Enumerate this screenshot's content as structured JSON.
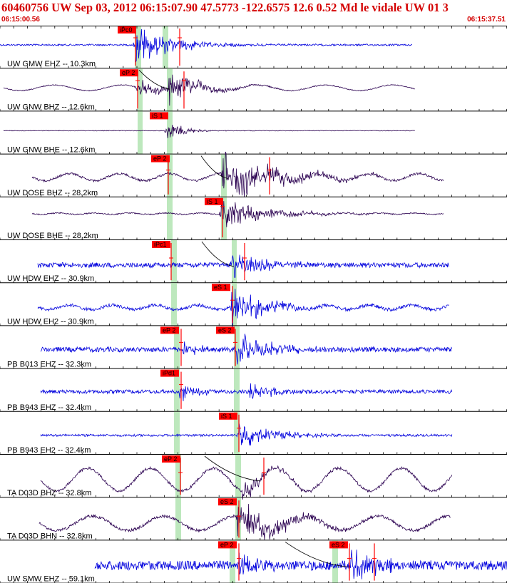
{
  "header": {
    "title": "60460756 UW Sep 03, 2012 06:15:07.90    47.5773 -122.6575 12.6 0.52 Md le vidale UW 01    3",
    "time_start": "06:15:00.56",
    "time_end": "06:15:37.51"
  },
  "colors": {
    "title": "#d40000",
    "blue_trace": "#0000dd",
    "purple_trace": "#2a0050",
    "pick_box": "#ff0000",
    "pick_line": "#ff0000",
    "window_shade": "#bde8bd",
    "separator": "#000000"
  },
  "traces": [
    {
      "label": "UW GMW EHZ -- 10.3km",
      "color": "blue",
      "picks": [
        {
          "text": "iPc0"
        }
      ]
    },
    {
      "label": "UW GNW BHZ -- 12.6km",
      "color": "purple",
      "picks": [
        {
          "text": "eP 2"
        }
      ]
    },
    {
      "label": "UW GNW BHE -- 12.6km",
      "color": "purple",
      "picks": [
        {
          "text": "iS 1"
        }
      ]
    },
    {
      "label": "UW DOSE BHZ -- 28.2km",
      "color": "purple",
      "picks": [
        {
          "text": "eP 2"
        }
      ]
    },
    {
      "label": "UW DOSE BHE -- 28.2km",
      "color": "purple",
      "picks": [
        {
          "text": "iS 1"
        }
      ]
    },
    {
      "label": "UW HDW EHZ -- 30.9km",
      "color": "blue",
      "picks": [
        {
          "text": "iPc1"
        }
      ]
    },
    {
      "label": "UW HDW EH2 -- 30.9km",
      "color": "blue",
      "picks": [
        {
          "text": "eS 1"
        }
      ]
    },
    {
      "label": "PB B013 EHZ -- 32.3km",
      "color": "blue",
      "picks": [
        {
          "text": "eP 2"
        },
        {
          "text": "eS 2"
        }
      ]
    },
    {
      "label": "PB B943 EHZ -- 32.4km",
      "color": "blue",
      "picks": [
        {
          "text": "iPd1"
        }
      ]
    },
    {
      "label": "PB B943 EH2 -- 32.4km",
      "color": "blue",
      "picks": [
        {
          "text": "iS 1"
        }
      ]
    },
    {
      "label": "TA D03D BHZ -- 32.8km",
      "color": "purple",
      "picks": [
        {
          "text": "eP 2"
        }
      ]
    },
    {
      "label": "TA D03D BHN -- 32.8km",
      "color": "purple",
      "picks": [
        {
          "text": "eS 2"
        }
      ]
    },
    {
      "label": "UW SMW EHZ -- 59.1km",
      "color": "blue",
      "picks": [
        {
          "text": "eP 2"
        },
        {
          "text": "eS 2"
        }
      ]
    }
  ]
}
